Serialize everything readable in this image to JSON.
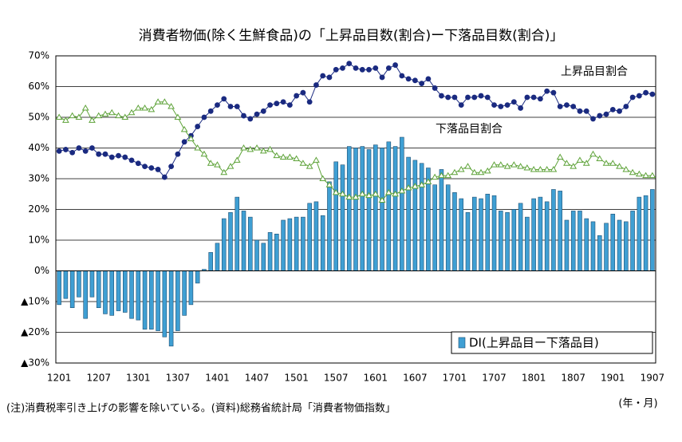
{
  "chart_data": {
    "type": "bar",
    "title": "消費者物価(除く生鮮食品)の「上昇品目数(割合)ー下落品目数(割合)」",
    "note": "(注)消費税率引き上げの影響を除いている。(資料)総務省統計局「消費者物価指数」",
    "x_label": "(年・月)",
    "categories": [
      "1201",
      null,
      null,
      null,
      null,
      null,
      "1207",
      null,
      null,
      null,
      null,
      null,
      "1301",
      null,
      null,
      null,
      null,
      null,
      "1307",
      null,
      null,
      null,
      null,
      null,
      "1401",
      null,
      null,
      null,
      null,
      null,
      "1407",
      null,
      null,
      null,
      null,
      null,
      "1501",
      null,
      null,
      null,
      null,
      null,
      "1507",
      null,
      null,
      null,
      null,
      null,
      "1601",
      null,
      null,
      null,
      null,
      null,
      "1607",
      null,
      null,
      null,
      null,
      null,
      "1701",
      null,
      null,
      null,
      null,
      null,
      "1707",
      null,
      null,
      null,
      null,
      null,
      "1801",
      null,
      null,
      null,
      null,
      null,
      "1807",
      null,
      null,
      null,
      null,
      null,
      "1901",
      null,
      null,
      null,
      null,
      null,
      "1907"
    ],
    "ylim": [
      -30,
      70
    ],
    "yticks": [
      {
        "value": -30,
        "label": "▲30%"
      },
      {
        "value": -20,
        "label": "▲20%"
      },
      {
        "value": -10,
        "label": "▲10%"
      },
      {
        "value": 0,
        "label": "0%"
      },
      {
        "value": 10,
        "label": "10%"
      },
      {
        "value": 20,
        "label": "20%"
      },
      {
        "value": 30,
        "label": "30%"
      },
      {
        "value": 40,
        "label": "40%"
      },
      {
        "value": 50,
        "label": "50%"
      },
      {
        "value": 60,
        "label": "60%"
      },
      {
        "value": 70,
        "label": "70%"
      }
    ],
    "grid": true,
    "legend": "lower right",
    "series": [
      {
        "name": "DI(上昇品目ー下落品目)",
        "type": "bar",
        "color": "#3f9fd3",
        "values": [
          -11,
          -9,
          -12,
          -8.5,
          -15.5,
          -8.5,
          -12,
          -14,
          -14.5,
          -13,
          -13.5,
          -15.5,
          -16,
          -19,
          -19,
          -19.5,
          -21.5,
          -24.5,
          -19.5,
          -14.5,
          -11,
          -4,
          0.5,
          6,
          9,
          17,
          19,
          24,
          19.5,
          17.5,
          10,
          9,
          12.5,
          12,
          16.5,
          17,
          17.5,
          17.5,
          22,
          22.5,
          18,
          29,
          35.5,
          34.5,
          40.5,
          40,
          40.5,
          39.5,
          41,
          40,
          42,
          40.5,
          43.5,
          37,
          36,
          35,
          33.5,
          28,
          33,
          28,
          25.5,
          23.5,
          19,
          24,
          23.5,
          25,
          24.5,
          19.5,
          19,
          20,
          22,
          17.5,
          23.5,
          24,
          22.5,
          26.5,
          26,
          16.5,
          19.5,
          19.5,
          17,
          16,
          11.5,
          15.5,
          18.5,
          16.5,
          16,
          19.5,
          24,
          24.5,
          26.5
        ]
      },
      {
        "name": "上昇品目割合",
        "type": "line",
        "marker": "circle",
        "color": "#1a2a80",
        "values": [
          39,
          39.5,
          38.5,
          40,
          39,
          40,
          38,
          38,
          37,
          37.5,
          37,
          36,
          35,
          34,
          33.5,
          33,
          30.5,
          34,
          38,
          42,
          44,
          47,
          50,
          52,
          54,
          56,
          53.5,
          53.5,
          50.5,
          49.5,
          51,
          52,
          54,
          54.5,
          55,
          54,
          57,
          58,
          55,
          60.5,
          63.5,
          63,
          65.5,
          66,
          67.5,
          66,
          65.5,
          65.5,
          66,
          63,
          66,
          67,
          63.5,
          62.5,
          62,
          61,
          62.5,
          59.5,
          57,
          56.5,
          56.5,
          54,
          56.5,
          56.5,
          57,
          56.5,
          54,
          53.5,
          54,
          55,
          53,
          56.5,
          56.5,
          56,
          58.5,
          58,
          53.5,
          54,
          53.5,
          52,
          52,
          49.5,
          50.5,
          51,
          52.5,
          52,
          53.5,
          56.5,
          57,
          58,
          57.5
        ]
      },
      {
        "name": "下落品目割合",
        "type": "line",
        "marker": "triangle",
        "color": "#5fa33a",
        "values": [
          50,
          49,
          50.5,
          50,
          53,
          49,
          50.5,
          51,
          51.5,
          50.5,
          50,
          51.5,
          53,
          53,
          52.5,
          55,
          55,
          53.5,
          50,
          46,
          43,
          40,
          38,
          35,
          34.5,
          32,
          34,
          36,
          40,
          39.5,
          40,
          39,
          39.5,
          37.5,
          37,
          37,
          36.5,
          35,
          34,
          36,
          30,
          28,
          25.5,
          25,
          24,
          24,
          25,
          24.5,
          25,
          23,
          25.5,
          25,
          26,
          27,
          27.5,
          28,
          29,
          30.5,
          31,
          31,
          32,
          33,
          34,
          32,
          32,
          32.5,
          34.5,
          34.5,
          34,
          34.5,
          34,
          33.5,
          33,
          33,
          33,
          33,
          37,
          35,
          34,
          36,
          35,
          38,
          36.5,
          35,
          35,
          34,
          33,
          32,
          31.5,
          31,
          31
        ]
      }
    ]
  }
}
